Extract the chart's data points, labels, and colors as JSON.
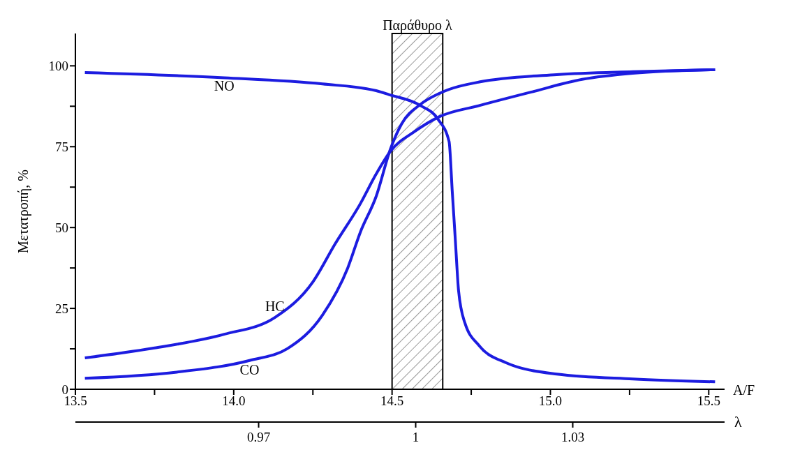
{
  "chart_data": {
    "type": "line",
    "ylabel": "Μετατροπή, %",
    "xlabel": "A/F",
    "x2label": "λ",
    "xlim": [
      13.5,
      15.55
    ],
    "xticks": [
      13.5,
      {
        "value": 13.75,
        "label": null
      },
      {
        "value": 14,
        "label": "14.0"
      },
      {
        "value": 14.25,
        "label": null
      },
      14.5,
      {
        "value": 14.75,
        "label": null
      },
      {
        "value": 15,
        "label": "15.0"
      },
      {
        "value": 15.25,
        "label": null
      },
      15.5
    ],
    "x2lim": [
      0.935,
      1.059
    ],
    "x2ticks": [
      0.97,
      1,
      1.03
    ],
    "ylim": [
      0,
      110
    ],
    "yticks": [
      0,
      {
        "value": 12.5,
        "label": null
      },
      25,
      {
        "value": 37.5,
        "label": null
      },
      50,
      {
        "value": 62.5,
        "label": null
      },
      75,
      {
        "value": 87.5,
        "label": null
      },
      100
    ],
    "marker": "none",
    "line_style": "solid",
    "bands": [
      {
        "axis": "x",
        "from": 14.5,
        "to": 14.66,
        "label": "Παράθυρο λ"
      }
    ],
    "series": [
      {
        "name": "NO",
        "color": "#1c1ce0",
        "x": [
          13.53,
          13.97,
          14.28,
          14.45,
          14.49,
          14.59,
          14.645,
          14.68,
          14.69,
          14.7,
          14.71,
          14.73,
          14.775,
          14.86,
          15.02,
          15.26,
          15.52
        ],
        "values": [
          97.9,
          96.3,
          94.4,
          92.3,
          91.1,
          87.7,
          83.5,
          76.6,
          61.3,
          45.8,
          30.5,
          20.5,
          13.5,
          8.2,
          4.7,
          3.2,
          2.3
        ]
      },
      {
        "name": "HC",
        "color": "#1c1ce0",
        "x": [
          13.53,
          13.74,
          13.97,
          14.13,
          14.25,
          14.32,
          14.4,
          14.45,
          14.495,
          14.57,
          14.65,
          14.775,
          14.94,
          15.1,
          15.26,
          15.52
        ],
        "values": [
          9.7,
          12.6,
          17,
          22.2,
          33.2,
          44.9,
          57.4,
          66.6,
          73.6,
          79.6,
          84.3,
          87.7,
          91.9,
          95.8,
          97.7,
          98.8
        ]
      },
      {
        "name": "CO",
        "color": "#1c1ce0",
        "x": [
          13.53,
          13.82,
          14.05,
          14.17,
          14.28,
          14.36,
          14.4,
          14.45,
          14.495,
          14.53,
          14.59,
          14.65,
          14.775,
          15.02,
          15.26,
          15.52
        ],
        "values": [
          3.4,
          5.3,
          8.9,
          12.6,
          22.9,
          37.5,
          48.6,
          59.7,
          74.3,
          82,
          88.1,
          91.5,
          95,
          97.3,
          98.2,
          98.8
        ]
      }
    ]
  }
}
